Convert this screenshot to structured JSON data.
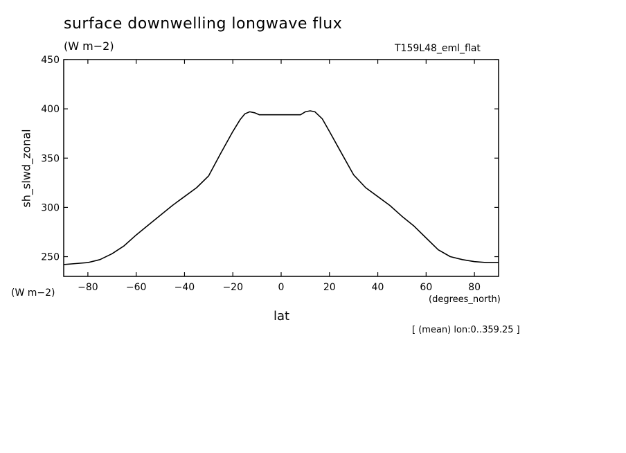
{
  "chart_data": {
    "type": "line",
    "title": "surface downwelling longwave flux",
    "units": "(W m−2)",
    "run_label": "T159L48_eml_flat",
    "ylabel": "sh_slwd_zonal",
    "yunits": "(W m−2)",
    "xlabel": "lat",
    "xunits": "(degrees_north)",
    "subset_note": "[ (mean) lon:0..359.25 ]",
    "xlim": [
      -90,
      90
    ],
    "ylim": [
      230,
      450
    ],
    "xticks": [
      -80,
      -60,
      -40,
      -20,
      0,
      20,
      40,
      60,
      80
    ],
    "xtick_labels": [
      "−80",
      "−60",
      "−40",
      "−20",
      "0",
      "20",
      "40",
      "60",
      "80"
    ],
    "yticks": [
      250,
      300,
      350,
      400,
      450
    ],
    "ytick_labels": [
      "250",
      "300",
      "350",
      "400",
      "450"
    ],
    "grid": false,
    "series": [
      {
        "x": [
          -90,
          -85,
          -80,
          -75,
          -70,
          -65,
          -60,
          -55,
          -50,
          -45,
          -40,
          -35,
          -30,
          -25,
          -20,
          -17,
          -15,
          -13,
          -11,
          -9,
          -5,
          0,
          5,
          8,
          10,
          12,
          14,
          17,
          20,
          25,
          30,
          35,
          40,
          45,
          50,
          55,
          60,
          65,
          70,
          75,
          80,
          85,
          90
        ],
        "y": [
          242,
          243,
          244,
          247,
          253,
          261,
          272,
          282,
          292,
          302,
          311,
          320,
          332,
          355,
          377,
          389,
          395,
          397,
          396,
          394,
          394,
          394,
          394,
          394,
          397,
          398,
          397,
          390,
          377,
          355,
          333,
          320,
          311,
          302,
          291,
          281,
          269,
          257,
          250,
          247,
          245,
          244,
          244
        ]
      }
    ]
  }
}
